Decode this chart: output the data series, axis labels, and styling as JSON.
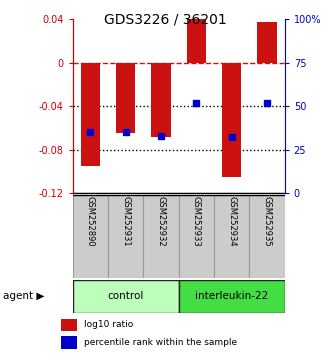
{
  "title": "GDS3226 / 36201",
  "samples": [
    "GSM252890",
    "GSM252931",
    "GSM252932",
    "GSM252933",
    "GSM252934",
    "GSM252935"
  ],
  "log10_ratio": [
    -0.095,
    -0.065,
    -0.068,
    0.04,
    -0.105,
    0.038
  ],
  "percentile_rank": [
    35,
    35,
    33,
    52,
    32,
    52
  ],
  "groups": [
    {
      "label": "control",
      "start": 0,
      "end": 3,
      "color": "#bbffbb"
    },
    {
      "label": "interleukin-22",
      "start": 3,
      "end": 6,
      "color": "#44dd44"
    }
  ],
  "ylim_left": [
    -0.12,
    0.04
  ],
  "ylim_right": [
    0,
    100
  ],
  "yticks_left": [
    0.04,
    0,
    -0.04,
    -0.08,
    -0.12
  ],
  "yticks_right": [
    100,
    75,
    50,
    25,
    0
  ],
  "bar_color": "#cc1111",
  "square_color": "#0000cc",
  "hline_zero_color": "#cc1111",
  "hline_dotted_color": "#000000",
  "axis_left_color": "#cc0000",
  "axis_right_color": "#0000cc",
  "bar_width": 0.55,
  "group_label": "agent",
  "legend_items": [
    "log10 ratio",
    "percentile rank within the sample"
  ],
  "legend_colors": [
    "#cc1111",
    "#0000cc"
  ],
  "sample_bg": "#cccccc",
  "sample_border": "#999999"
}
